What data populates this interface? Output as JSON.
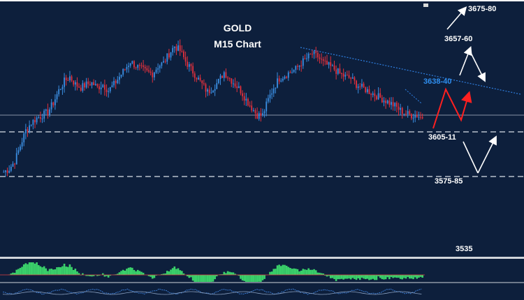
{
  "chart_data": {
    "type": "candlestick",
    "instrument": "GOLD",
    "title": "GOLD",
    "subtitle": "M15 Chart",
    "price_axis_min": 3520,
    "price_axis_max": 3690,
    "colors": {
      "background": "#0d1f3c",
      "bull_candle": "#3a8de0",
      "bear_candle": "#e0303c",
      "label_white": "#ffffff",
      "label_highlight": "#2f8ff0",
      "projection_red": "#ff2020",
      "trendline": "#2f7fe0",
      "histogram": "#3ad06a"
    },
    "levels": [
      {
        "label": "3675-80",
        "price": 3677,
        "color": "#ffffff"
      },
      {
        "label": "3657-60",
        "price": 3658,
        "color": "#ffffff"
      },
      {
        "label": "3638-40",
        "price": 3639,
        "color": "#2f8ff0"
      },
      {
        "label": "3605-11",
        "price": 3608,
        "color": "#ffffff",
        "dashed_line": true
      },
      {
        "label": "3575-85",
        "price": 3580,
        "color": "#ffffff",
        "dashed_line": true
      },
      {
        "label": "3535",
        "price": 3535,
        "color": "#ffffff"
      }
    ],
    "current_price_line": 3616,
    "closes": [
      3583,
      3585,
      3590,
      3600,
      3610,
      3615,
      3618,
      3620,
      3622,
      3628,
      3636,
      3642,
      3645,
      3640,
      3638,
      3640,
      3641,
      3638,
      3640,
      3636,
      3640,
      3645,
      3650,
      3655,
      3652,
      3650,
      3648,
      3647,
      3652,
      3654,
      3660,
      3665,
      3662,
      3655,
      3650,
      3645,
      3640,
      3635,
      3638,
      3642,
      3648,
      3644,
      3640,
      3636,
      3630,
      3625,
      3620,
      3620,
      3630,
      3638,
      3644,
      3646,
      3648,
      3650,
      3654,
      3657,
      3660,
      3658,
      3654,
      3652,
      3650,
      3647,
      3645,
      3644,
      3640,
      3638,
      3636,
      3634,
      3632,
      3630,
      3628,
      3626,
      3623,
      3621,
      3620,
      3620,
      3618
    ]
  },
  "overlays": {
    "bull_arrow_label": "3657-60",
    "bear_arrow_label": "3605-11"
  }
}
